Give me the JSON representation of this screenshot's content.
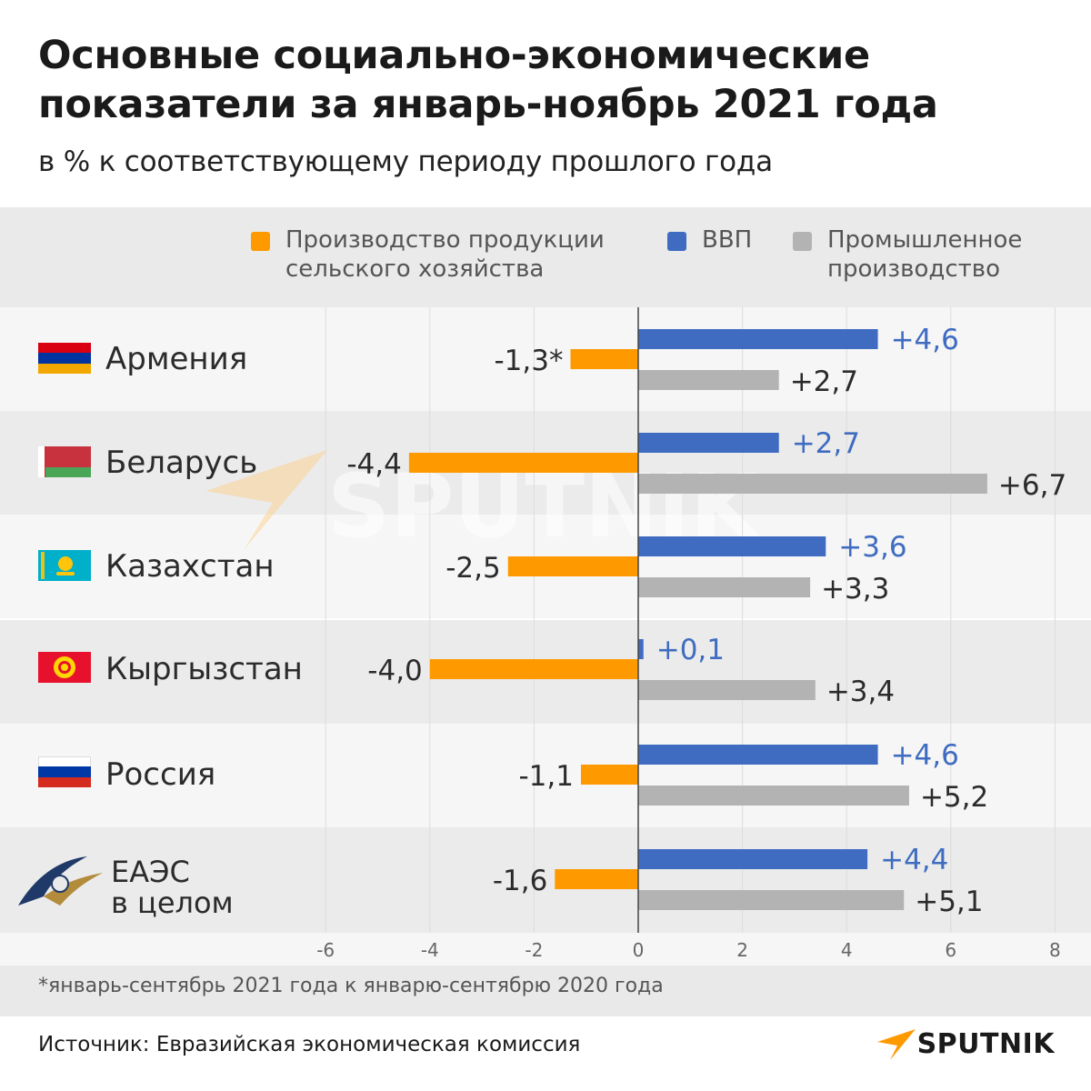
{
  "title_line1": "Основные социально-экономические",
  "title_line2": "показатели за январь-ноябрь 2021 года",
  "subtitle": "в % к соответствующему периоду прошлого года",
  "legend": [
    {
      "line1": "Производство продукции",
      "line2": "сельского хозяйства",
      "color": "#ff9900"
    },
    {
      "line1": "ВВП",
      "line2": "",
      "color": "#3f6cc1"
    },
    {
      "line1": "Промышленное",
      "line2": "производство",
      "color": "#b3b3b3"
    }
  ],
  "countries": [
    {
      "name": "Армения",
      "name2": ""
    },
    {
      "name": "Беларусь",
      "name2": ""
    },
    {
      "name": "Казахстан",
      "name2": ""
    },
    {
      "name": "Кыргызстан",
      "name2": ""
    },
    {
      "name": "Россия",
      "name2": ""
    },
    {
      "name": "ЕАЭС",
      "name2": "в целом"
    }
  ],
  "note": "*январь-сентябрь 2021 года к январю-сентябрю 2020 года",
  "source": "Источник: Евразийская экономическая комиссия",
  "brand": "SPUTNIK",
  "watermark": "SPUTNIK",
  "colors": {
    "agri": "#ff9900",
    "gdp": "#3f6cc1",
    "industry": "#b3b3b3",
    "gdp_label": "#3f6cc1",
    "text_label": "#2b2b2b"
  },
  "chart_data": {
    "type": "bar",
    "orientation": "horizontal",
    "title": "Основные социально-экономические показатели за январь-ноябрь 2021 года",
    "subtitle": "в % к соответствующему периоду прошлого года",
    "categories": [
      "Армения",
      "Беларусь",
      "Казахстан",
      "Кыргызстан",
      "Россия",
      "ЕАЭС в целом"
    ],
    "series": [
      {
        "name": "Производство продукции сельского хозяйства",
        "values": [
          -1.3,
          -4.4,
          -2.5,
          -4.0,
          -1.1,
          -1.6
        ],
        "labels": [
          "-1,3*",
          "-4,4",
          "-2,5",
          "-4,0",
          "-1,1",
          "-1,6"
        ]
      },
      {
        "name": "ВВП",
        "values": [
          4.6,
          2.7,
          3.6,
          0.1,
          4.6,
          4.4
        ],
        "labels": [
          "+4,6",
          "+2,7",
          "+3,6",
          "+0,1",
          "+4,6",
          "+4,4"
        ]
      },
      {
        "name": "Промышленное производство",
        "values": [
          2.7,
          6.7,
          3.3,
          3.4,
          5.2,
          5.1
        ],
        "labels": [
          "+2,7",
          "+6,7",
          "+3,3",
          "+3,4",
          "+5,2",
          "+5,1"
        ]
      }
    ],
    "xlim": [
      -6,
      8
    ],
    "xticks": [
      -6,
      -4,
      -2,
      0,
      2,
      4,
      6,
      8
    ],
    "grid": true,
    "legend": "top"
  }
}
